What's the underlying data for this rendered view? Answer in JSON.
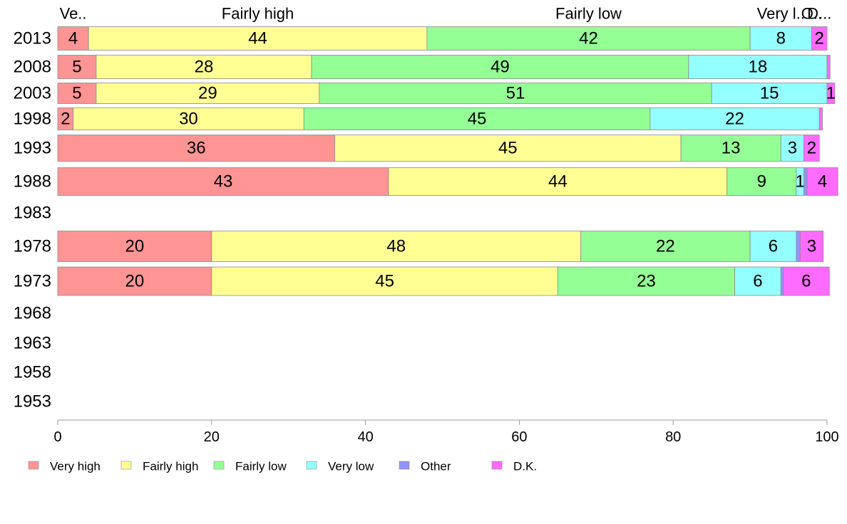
{
  "chart_data": {
    "type": "bar",
    "orientation": "horizontal",
    "stacked": true,
    "categories": [
      "2013",
      "2008",
      "2003",
      "1998",
      "1993",
      "1988",
      "1983",
      "1978",
      "1973",
      "1968",
      "1963",
      "1958",
      "1953"
    ],
    "series": [
      {
        "name": "Very high",
        "color": "#ff9494",
        "values": [
          4,
          5,
          5,
          2,
          36,
          43,
          null,
          20,
          20,
          null,
          null,
          null,
          null
        ]
      },
      {
        "name": "Fairly high",
        "color": "#ffff94",
        "values": [
          44,
          28,
          29,
          30,
          45,
          44,
          null,
          48,
          45,
          null,
          null,
          null,
          null
        ]
      },
      {
        "name": "Fairly low",
        "color": "#94ff94",
        "values": [
          42,
          49,
          51,
          45,
          13,
          9,
          null,
          22,
          23,
          null,
          null,
          null,
          null
        ]
      },
      {
        "name": "Very low",
        "color": "#94ffff",
        "values": [
          8,
          18,
          15,
          22,
          3,
          1,
          null,
          6,
          6,
          null,
          null,
          null,
          null
        ]
      },
      {
        "name": "Other",
        "color": "#9494ff",
        "values": [
          0,
          0,
          0,
          0,
          0,
          0.4,
          null,
          0.5,
          0.3,
          null,
          null,
          null,
          null
        ]
      },
      {
        "name": "D.K.",
        "color": "#ff6bff",
        "values": [
          2,
          0.4,
          1,
          0.4,
          2,
          4,
          null,
          3,
          6,
          null,
          null,
          null,
          null
        ]
      }
    ],
    "data_labels": [
      [
        "4",
        "44",
        "42",
        "8",
        "",
        "2"
      ],
      [
        "5",
        "28",
        "49",
        "18",
        "",
        ""
      ],
      [
        "5",
        "29",
        "51",
        "15",
        "",
        "1"
      ],
      [
        "2",
        "30",
        "45",
        "22",
        "",
        ""
      ],
      [
        "36",
        "45",
        "13",
        "3",
        "",
        "2"
      ],
      [
        "43",
        "44",
        "9",
        "1",
        "",
        "4"
      ],
      [
        "",
        "",
        "",
        "",
        "",
        ""
      ],
      [
        "20",
        "48",
        "22",
        "6",
        "",
        "3"
      ],
      [
        "20",
        "45",
        "23",
        "6",
        "",
        "6"
      ],
      [
        "",
        "",
        "",
        "",
        "",
        ""
      ],
      [
        "",
        "",
        "",
        "",
        "",
        ""
      ],
      [
        "",
        "",
        "",
        "",
        "",
        ""
      ],
      [
        "",
        "",
        "",
        "",
        "",
        ""
      ]
    ],
    "top_labels": [
      "Ve..",
      "Fairly high",
      "Fairly low",
      "Very l..",
      "O..",
      "D..."
    ],
    "x_ticks": [
      "0",
      "20",
      "40",
      "60",
      "80",
      "100"
    ],
    "xlim": [
      0,
      100
    ],
    "legend": [
      "Very high",
      "Fairly high",
      "Fairly low",
      "Very low",
      "Other",
      "D.K."
    ],
    "legend_position": "bottom",
    "grid": false
  }
}
